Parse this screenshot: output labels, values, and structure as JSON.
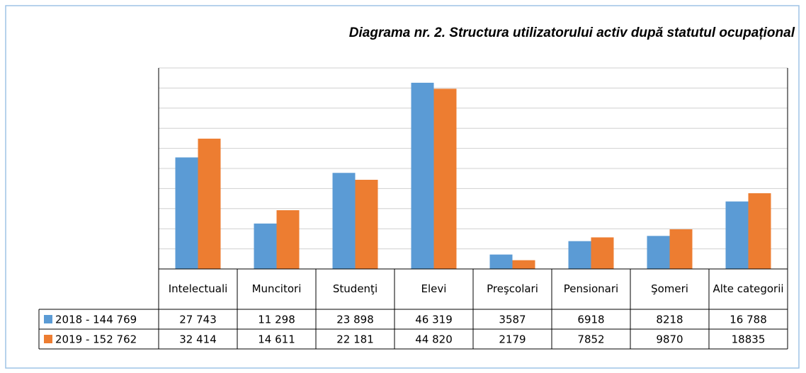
{
  "chart_data": {
    "type": "bar",
    "title": "Diagrama nr. 2. Structura utilizatorului activ după  statutul ocupațional",
    "categories": [
      "Intelectuali",
      "Muncitori",
      "Studenţi",
      "Elevi",
      "Preşcolari",
      "Pensionari",
      "Şomeri",
      "Alte categorii"
    ],
    "series": [
      {
        "name": "2018 - 144 769",
        "color": "#5b9bd5",
        "values": [
          27743,
          11298,
          23898,
          46319,
          3587,
          6918,
          8218,
          16788
        ],
        "value_labels": [
          "27 743",
          "11 298",
          "23 898",
          "46 319",
          "3587",
          "6918",
          "8218",
          "16 788"
        ]
      },
      {
        "name": "2019 - 152 762",
        "color": "#ed7d31",
        "values": [
          32414,
          14611,
          22181,
          44820,
          2179,
          7852,
          9870,
          18835
        ],
        "value_labels": [
          "32 414",
          "14 611",
          "22 181",
          "44 820",
          "2179",
          "7852",
          "9870",
          "18835"
        ]
      }
    ],
    "ylim": [
      0,
      50000
    ],
    "yticks": [
      0,
      5000,
      10000,
      15000,
      20000,
      25000,
      30000,
      35000,
      40000,
      45000,
      50000
    ],
    "grid": true
  }
}
